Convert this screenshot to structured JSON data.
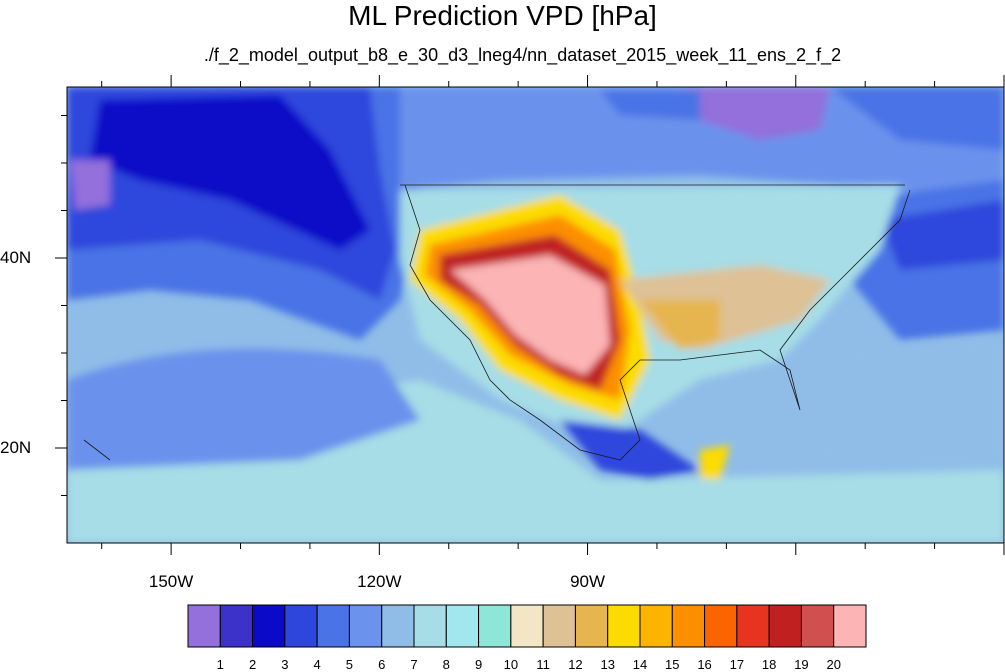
{
  "title": "ML Prediction VPD [hPa]",
  "subtitle": "./f_2_model_output_b8_e_30_d3_lneg4/nn_dataset_2015_week_11_ens_2_f_2",
  "map": {
    "projection": "cylindrical equidistant",
    "lon_range": [
      -165,
      -30
    ],
    "lat_range": [
      10,
      58
    ],
    "lon_ticks": [
      {
        "value": -150,
        "label": "150W"
      },
      {
        "value": -120,
        "label": "120W"
      },
      {
        "value": -90,
        "label": "90W"
      }
    ],
    "lat_ticks": [
      {
        "value": 40,
        "label": "40N"
      },
      {
        "value": 20,
        "label": "20N"
      }
    ]
  },
  "colorbar": {
    "labels": [
      "1",
      "2",
      "3",
      "4",
      "5",
      "6",
      "7",
      "8",
      "9",
      "10",
      "11",
      "12",
      "13",
      "14",
      "15",
      "16",
      "17",
      "18",
      "19",
      "20"
    ],
    "colors": [
      "#9370db",
      "#3c31c8",
      "#0a0ac8",
      "#2e46dc",
      "#4a73e6",
      "#6b92ec",
      "#8fbde8",
      "#a6dde6",
      "#a0e8ee",
      "#8ee6d8",
      "#f2e6c4",
      "#dec195",
      "#e6b54f",
      "#fcdb00",
      "#fcb400",
      "#fc8f00",
      "#fc6400",
      "#e6341e",
      "#c02020",
      "#d05050",
      "#fcb4b4"
    ]
  }
}
